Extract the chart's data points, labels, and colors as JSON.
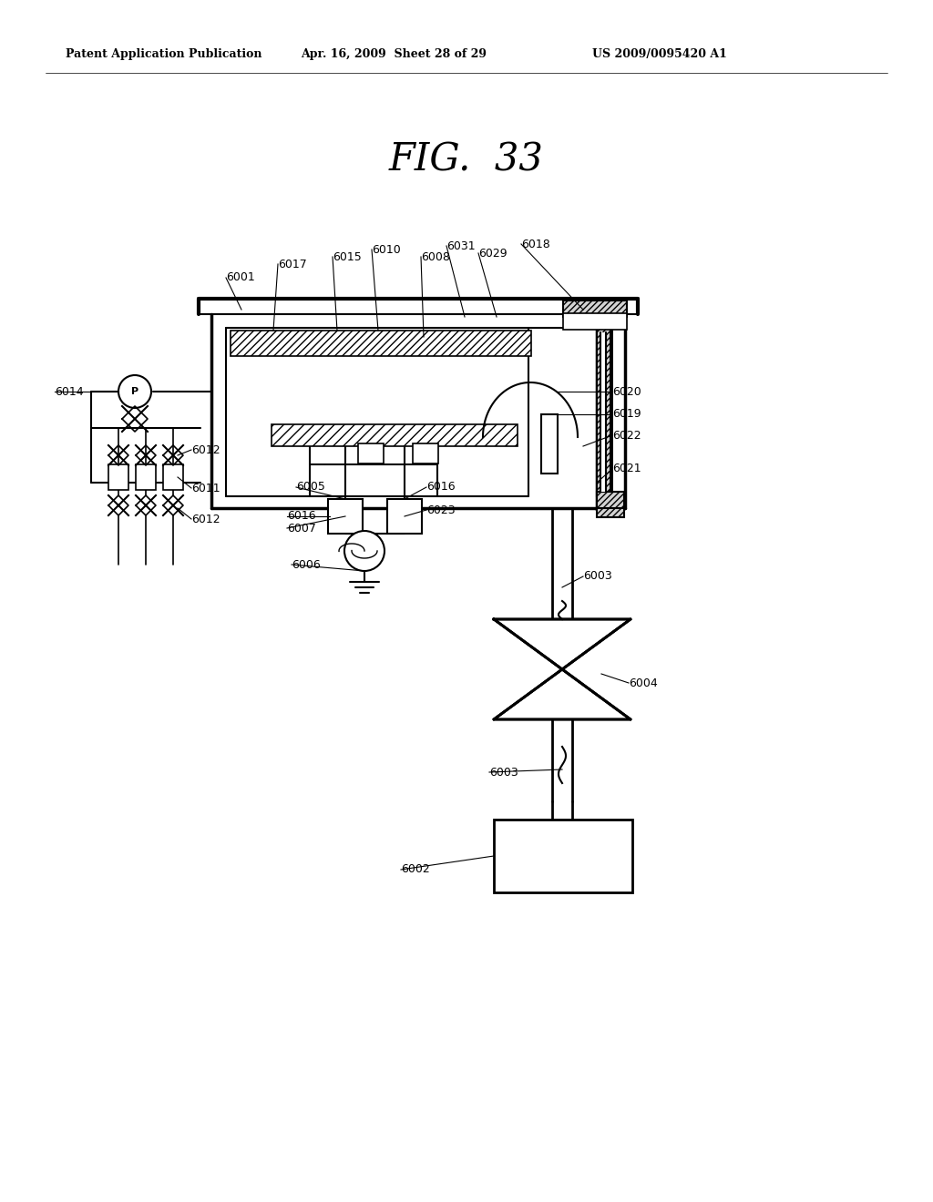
{
  "title": "FIG.  33",
  "header_left": "Patent Application Publication",
  "header_center": "Apr. 16, 2009  Sheet 28 of 29",
  "header_right": "US 2009/0095420 A1",
  "bg_color": "#ffffff",
  "fig_width": 10.24,
  "fig_height": 13.2,
  "dpi": 100
}
